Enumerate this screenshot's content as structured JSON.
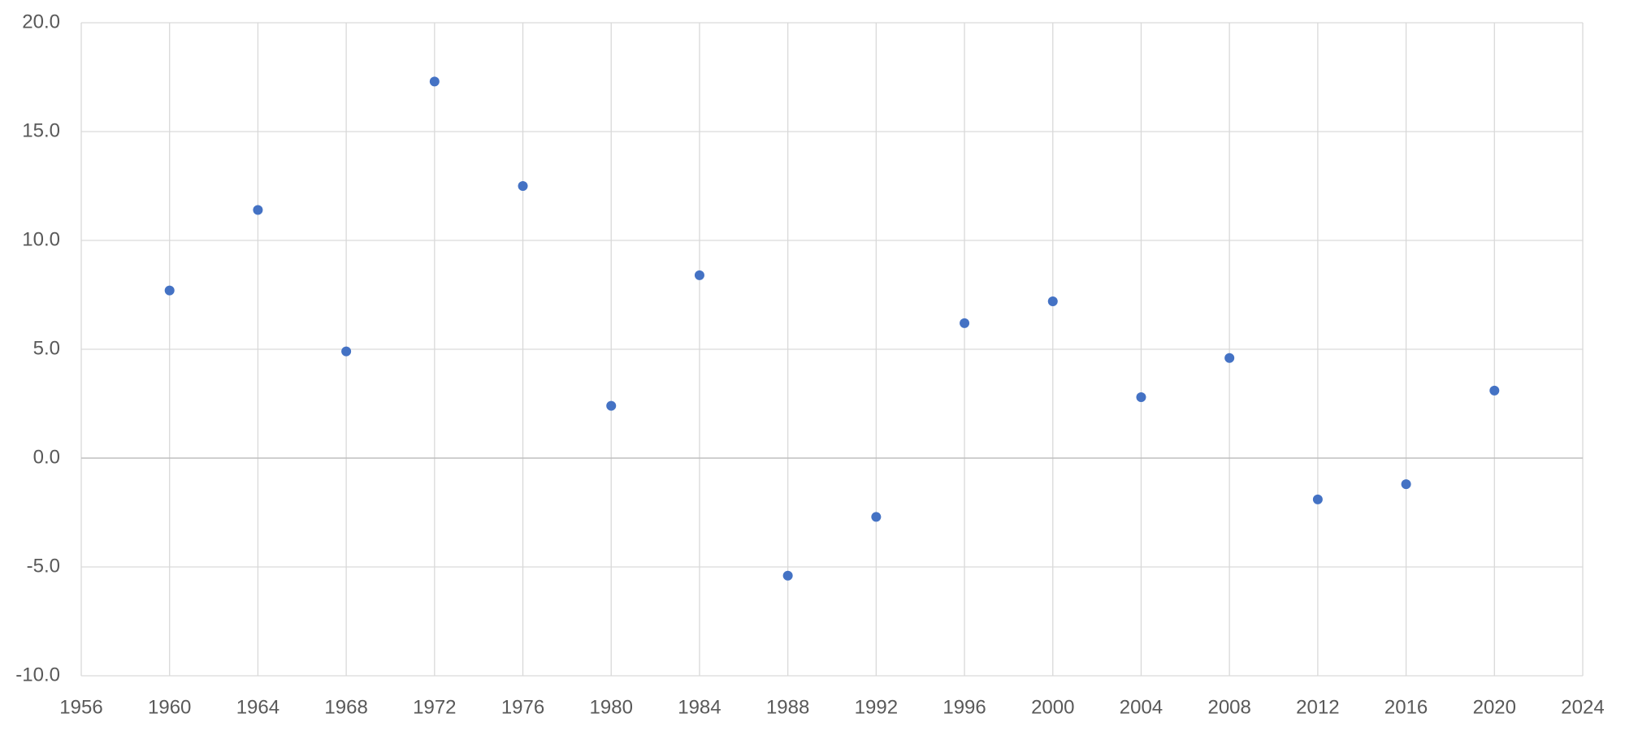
{
  "chart_data": {
    "type": "scatter",
    "x": [
      1960,
      1964,
      1968,
      1972,
      1976,
      1980,
      1984,
      1988,
      1992,
      1996,
      2000,
      2004,
      2008,
      2012,
      2016,
      2020
    ],
    "values": [
      7.7,
      11.4,
      4.9,
      17.3,
      12.5,
      2.4,
      8.4,
      -5.4,
      -2.7,
      6.2,
      7.2,
      2.8,
      4.6,
      -1.9,
      -1.2,
      3.1
    ],
    "color": "#4472c4",
    "xlim": [
      1956,
      2024
    ],
    "xticks": [
      1956,
      1960,
      1964,
      1968,
      1972,
      1976,
      1980,
      1984,
      1988,
      1992,
      1996,
      2000,
      2004,
      2008,
      2012,
      2016,
      2020,
      2024
    ],
    "ylim": [
      -10,
      20
    ],
    "yticks": [
      {
        "value": -10,
        "label": "-10.0"
      },
      {
        "value": -5,
        "label": "-5.0"
      },
      {
        "value": 0,
        "label": "0.0"
      },
      {
        "value": 5,
        "label": "5.0"
      },
      {
        "value": 10,
        "label": "10.0"
      },
      {
        "value": 15,
        "label": "15.0"
      },
      {
        "value": 20,
        "label": "20.0"
      }
    ],
    "grid": true
  }
}
